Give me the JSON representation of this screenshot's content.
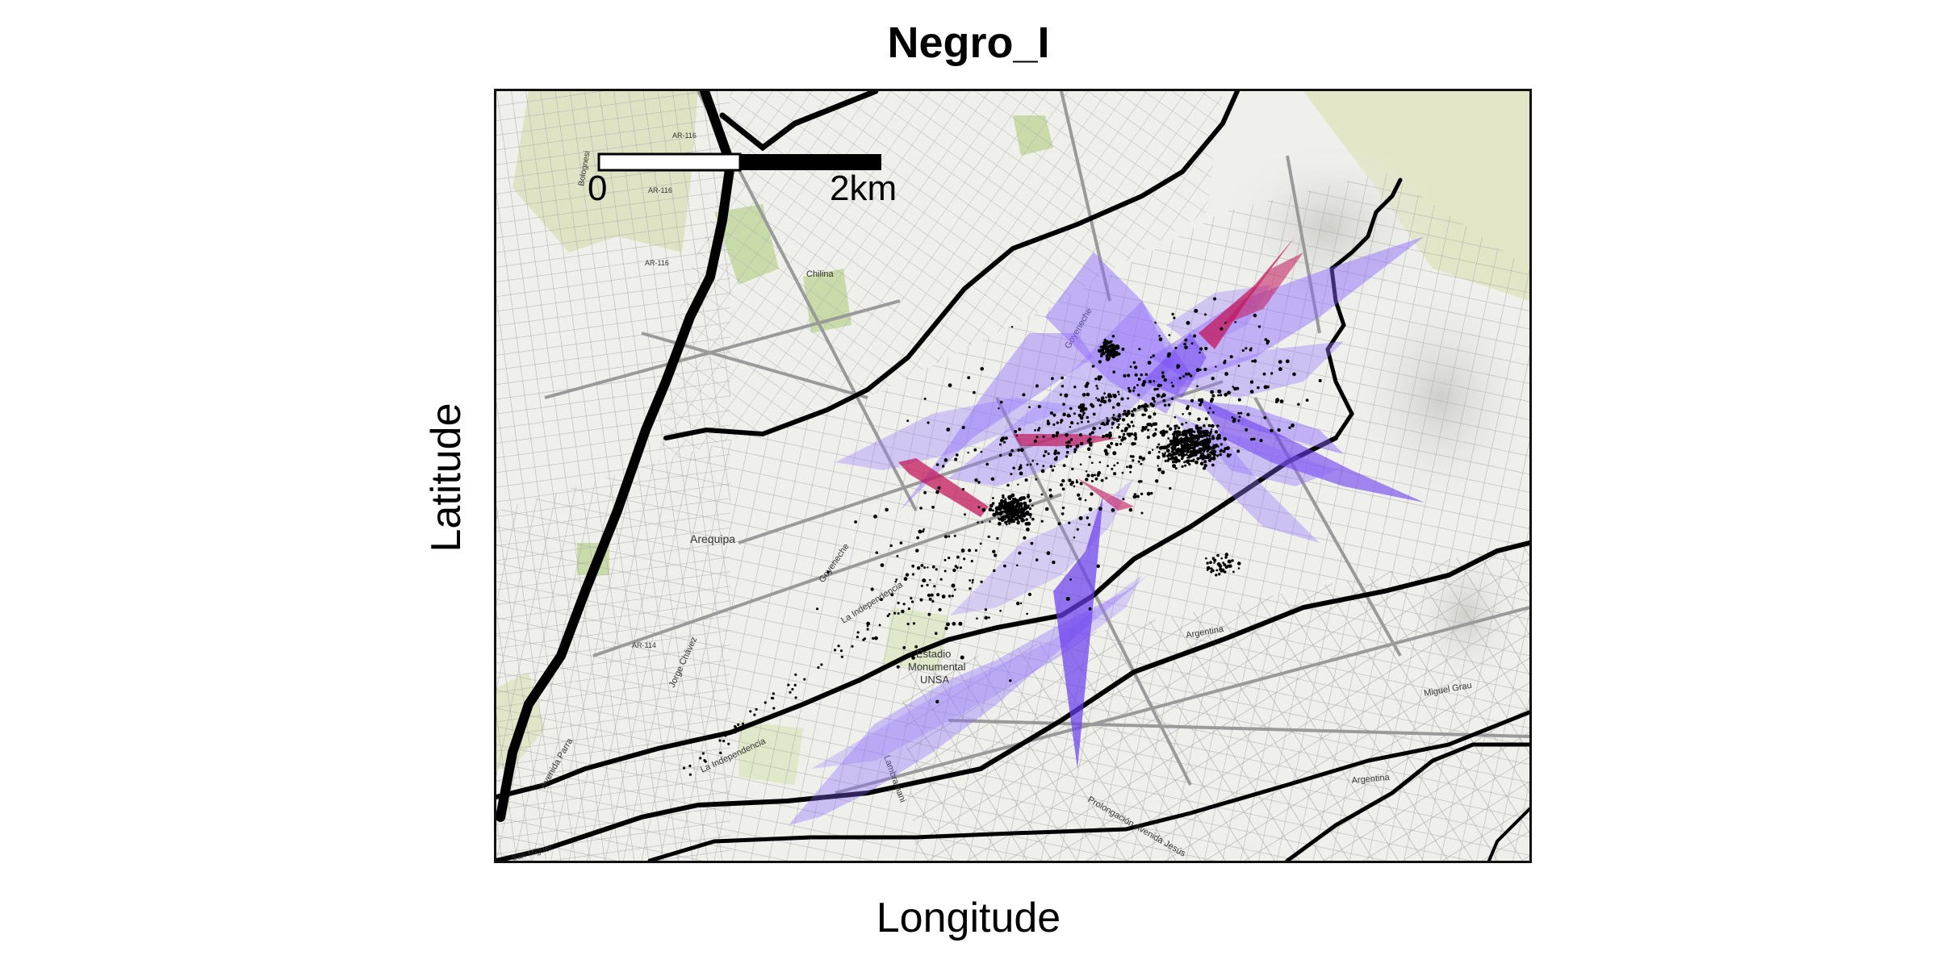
{
  "plot": {
    "title": "Negro_I",
    "xlabel": "Longitude",
    "ylabel": "Latitude"
  },
  "scalebar": {
    "label_start": "0",
    "label_end": "2km"
  },
  "map_labels": {
    "city": "Arequipa",
    "stadium_line1": "Estadio",
    "stadium_line2": "Monumental",
    "stadium_line3": "UNSA",
    "road_ar116": "AR-116",
    "road_ar114": "AR-114",
    "street_goyeneche": "Goyeneche",
    "street_independencia": "La Independencia",
    "street_argentina": "Argentina",
    "street_miguel_grau": "Miguel Grau",
    "street_jorge_chavez": "Jorge Chávez",
    "street_avenida_parra": "Avenida Parra",
    "street_lambramani": "Lambramani",
    "street_prolongacion": "Prolongación Avenida Jesús",
    "street_chilina": "Chilina",
    "street_bolognesi": "Bolognesi",
    "street_san_miguel": "San Miguel"
  },
  "colors": {
    "polygon_purple": "#6a3df0",
    "polygon_magenta": "#c2185b",
    "points": "#000000",
    "rivers": "#000000",
    "streets": "#a6a6a6",
    "parks": "#c9dba8",
    "relief": "#d9d9d4"
  }
}
